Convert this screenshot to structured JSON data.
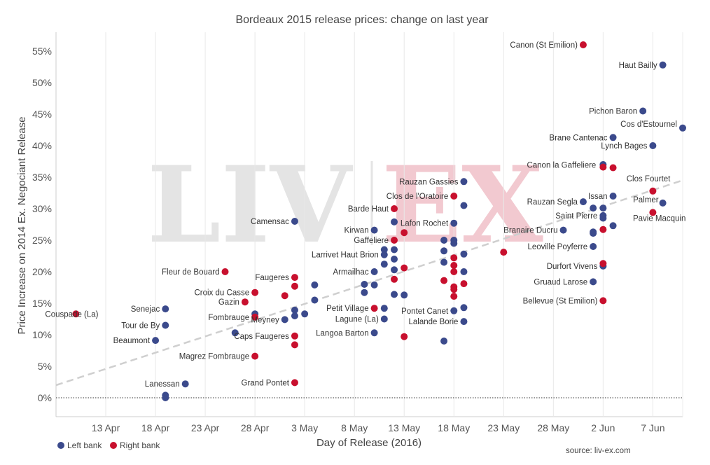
{
  "chart_data": {
    "type": "scatter",
    "title": "Bordeaux 2015 release prices: change on last year",
    "xlabel": "Day of Release (2016)",
    "ylabel": "Price Increase on 2014 Ex. Negociant Release",
    "x_range": [
      "2016-04-08",
      "2016-06-10"
    ],
    "x_ticks": [
      {
        "date": "2016-04-13",
        "label": "13 Apr"
      },
      {
        "date": "2016-04-18",
        "label": "18 Apr"
      },
      {
        "date": "2016-04-23",
        "label": "23 Apr"
      },
      {
        "date": "2016-04-28",
        "label": "28 Apr"
      },
      {
        "date": "2016-05-03",
        "label": "3 May"
      },
      {
        "date": "2016-05-08",
        "label": "8 May"
      },
      {
        "date": "2016-05-13",
        "label": "13 May"
      },
      {
        "date": "2016-05-18",
        "label": "18 May"
      },
      {
        "date": "2016-05-23",
        "label": "23 May"
      },
      {
        "date": "2016-05-28",
        "label": "28 May"
      },
      {
        "date": "2016-06-02",
        "label": "2 Jun"
      },
      {
        "date": "2016-06-07",
        "label": "7 Jun"
      }
    ],
    "y_range": [
      -3,
      58
    ],
    "y_ticks": [
      0,
      5,
      10,
      15,
      20,
      25,
      30,
      35,
      40,
      45,
      50,
      55
    ],
    "y_tick_labels": [
      "0%",
      "5%",
      "10%",
      "15%",
      "20%",
      "25%",
      "30%",
      "35%",
      "40%",
      "45%",
      "50%",
      "55%"
    ],
    "zero_line": true,
    "grid": "vertical",
    "trend_line": {
      "start": [
        "2016-04-08",
        2.0
      ],
      "end": [
        "2016-06-10",
        34.5
      ]
    },
    "legend_position": "bottom-left",
    "legend": [
      {
        "key": "left",
        "label": "Left bank",
        "color": "#3b4a8c"
      },
      {
        "key": "right",
        "label": "Right bank",
        "color": "#c8102e"
      }
    ],
    "source": "source: liv-ex.com",
    "watermark": "LIV-EX",
    "series": [
      {
        "key": "left",
        "name": "Left bank",
        "color": "#3b4a8c",
        "points": [
          {
            "x": "2016-06-08",
            "y": 52.8,
            "label": "Haut Bailly"
          },
          {
            "x": "2016-06-06",
            "y": 45.5,
            "label": "Pichon Baron"
          },
          {
            "x": "2016-06-10",
            "y": 42.8,
            "label": "Cos d'Estournel"
          },
          {
            "x": "2016-06-03",
            "y": 41.3,
            "label": "Brane Cantenac"
          },
          {
            "x": "2016-06-07",
            "y": 40.0,
            "label": "Lynch Bages"
          },
          {
            "x": "2016-06-02",
            "y": 37.0,
            "label": ""
          },
          {
            "x": "2016-05-19",
            "y": 34.3,
            "label": "Rauzan Gassies"
          },
          {
            "x": "2016-06-03",
            "y": 32.0,
            "label": "Issan"
          },
          {
            "x": "2016-05-31",
            "y": 31.1,
            "label": "Rauzan Segla"
          },
          {
            "x": "2016-06-08",
            "y": 30.9,
            "label": "Palmer"
          },
          {
            "x": "2016-05-19",
            "y": 30.5,
            "label": ""
          },
          {
            "x": "2016-06-01",
            "y": 30.1,
            "label": ""
          },
          {
            "x": "2016-06-02",
            "y": 30.1,
            "label": ""
          },
          {
            "x": "2016-06-02",
            "y": 28.9,
            "label": "Saint Pierre"
          },
          {
            "x": "2016-06-02",
            "y": 28.5,
            "label": ""
          },
          {
            "x": "2016-05-02",
            "y": 28.0,
            "label": "Camensac"
          },
          {
            "x": "2016-05-12",
            "y": 27.9,
            "label": ""
          },
          {
            "x": "2016-05-18",
            "y": 27.7,
            "label": "Lafon Rochet"
          },
          {
            "x": "2016-06-03",
            "y": 27.3,
            "label": ""
          },
          {
            "x": "2016-05-10",
            "y": 26.6,
            "label": "Kirwan"
          },
          {
            "x": "2016-05-29",
            "y": 26.6,
            "label": "Branaire Ducru"
          },
          {
            "x": "2016-06-01",
            "y": 26.3,
            "label": ""
          },
          {
            "x": "2016-06-01",
            "y": 26.1,
            "label": ""
          },
          {
            "x": "2016-05-17",
            "y": 25.0,
            "label": ""
          },
          {
            "x": "2016-05-18",
            "y": 25.0,
            "label": ""
          },
          {
            "x": "2016-05-18",
            "y": 24.5,
            "label": ""
          },
          {
            "x": "2016-06-01",
            "y": 24.0,
            "label": "Leoville Poyferre"
          },
          {
            "x": "2016-05-11",
            "y": 23.5,
            "label": ""
          },
          {
            "x": "2016-05-12",
            "y": 23.5,
            "label": ""
          },
          {
            "x": "2016-05-17",
            "y": 23.3,
            "label": ""
          },
          {
            "x": "2016-05-11",
            "y": 22.7,
            "label": "Larrivet Haut Brion"
          },
          {
            "x": "2016-05-19",
            "y": 22.8,
            "label": ""
          },
          {
            "x": "2016-05-12",
            "y": 22.0,
            "label": ""
          },
          {
            "x": "2016-05-17",
            "y": 21.5,
            "label": ""
          },
          {
            "x": "2016-05-11",
            "y": 21.2,
            "label": ""
          },
          {
            "x": "2016-06-02",
            "y": 20.9,
            "label": "Durfort Vivens"
          },
          {
            "x": "2016-05-10",
            "y": 20.0,
            "label": "Armailhac"
          },
          {
            "x": "2016-05-12",
            "y": 20.3,
            "label": ""
          },
          {
            "x": "2016-05-19",
            "y": 20.0,
            "label": ""
          },
          {
            "x": "2016-05-09",
            "y": 18.0,
            "label": ""
          },
          {
            "x": "2016-05-10",
            "y": 17.9,
            "label": ""
          },
          {
            "x": "2016-05-04",
            "y": 17.9,
            "label": ""
          },
          {
            "x": "2016-06-01",
            "y": 18.4,
            "label": "Gruaud Larose"
          },
          {
            "x": "2016-05-09",
            "y": 16.7,
            "label": ""
          },
          {
            "x": "2016-05-12",
            "y": 16.4,
            "label": ""
          },
          {
            "x": "2016-05-13",
            "y": 16.3,
            "label": ""
          },
          {
            "x": "2016-05-04",
            "y": 15.5,
            "label": ""
          },
          {
            "x": "2016-05-11",
            "y": 14.2,
            "label": ""
          },
          {
            "x": "2016-05-19",
            "y": 14.3,
            "label": ""
          },
          {
            "x": "2016-04-19",
            "y": 14.1,
            "label": "Senejac"
          },
          {
            "x": "2016-05-18",
            "y": 13.8,
            "label": "Pontet Canet"
          },
          {
            "x": "2016-05-02",
            "y": 13.9,
            "label": ""
          },
          {
            "x": "2016-05-03",
            "y": 13.3,
            "label": ""
          },
          {
            "x": "2016-04-28",
            "y": 13.3,
            "label": ""
          },
          {
            "x": "2016-05-02",
            "y": 13.0,
            "label": ""
          },
          {
            "x": "2016-05-01",
            "y": 12.4,
            "label": "Meyney"
          },
          {
            "x": "2016-05-11",
            "y": 12.5,
            "label": "Lagune (La)"
          },
          {
            "x": "2016-05-19",
            "y": 12.1,
            "label": "Lalande Borie"
          },
          {
            "x": "2016-04-19",
            "y": 11.5,
            "label": "Tour de By"
          },
          {
            "x": "2016-04-26",
            "y": 10.3,
            "label": ""
          },
          {
            "x": "2016-05-10",
            "y": 10.3,
            "label": "Langoa Barton"
          },
          {
            "x": "2016-04-18",
            "y": 9.1,
            "label": "Beaumont"
          },
          {
            "x": "2016-05-17",
            "y": 9.0,
            "label": ""
          },
          {
            "x": "2016-04-21",
            "y": 2.2,
            "label": "Lanessan"
          },
          {
            "x": "2016-04-19",
            "y": 0.4,
            "label": ""
          },
          {
            "x": "2016-04-19",
            "y": 0.0,
            "label": ""
          }
        ]
      },
      {
        "key": "right",
        "name": "Right bank",
        "color": "#c8102e",
        "points": [
          {
            "x": "2016-05-31",
            "y": 56.0,
            "label": "Canon (St Emilion)"
          },
          {
            "x": "2016-06-02",
            "y": 36.6,
            "label": "Canon la Gaffeliere"
          },
          {
            "x": "2016-06-03",
            "y": 36.5,
            "label": ""
          },
          {
            "x": "2016-06-07",
            "y": 32.8,
            "label": "Clos Fourtet"
          },
          {
            "x": "2016-05-18",
            "y": 32.0,
            "label": "Clos de l'Oratoire"
          },
          {
            "x": "2016-05-12",
            "y": 30.0,
            "label": "Barde Haut"
          },
          {
            "x": "2016-06-07",
            "y": 29.4,
            "label": "Pavie Macquin"
          },
          {
            "x": "2016-06-02",
            "y": 26.7,
            "label": ""
          },
          {
            "x": "2016-05-13",
            "y": 26.2,
            "label": ""
          },
          {
            "x": "2016-05-12",
            "y": 25.0,
            "label": "Gaffeliere"
          },
          {
            "x": "2016-05-23",
            "y": 23.1,
            "label": ""
          },
          {
            "x": "2016-05-18",
            "y": 22.2,
            "label": ""
          },
          {
            "x": "2016-06-02",
            "y": 21.3,
            "label": ""
          },
          {
            "x": "2016-05-18",
            "y": 21.0,
            "label": ""
          },
          {
            "x": "2016-05-13",
            "y": 20.6,
            "label": ""
          },
          {
            "x": "2016-04-25",
            "y": 20.0,
            "label": "Fleur de Bouard"
          },
          {
            "x": "2016-05-18",
            "y": 20.0,
            "label": ""
          },
          {
            "x": "2016-05-02",
            "y": 19.1,
            "label": "Faugeres"
          },
          {
            "x": "2016-05-12",
            "y": 18.8,
            "label": ""
          },
          {
            "x": "2016-05-17",
            "y": 18.6,
            "label": ""
          },
          {
            "x": "2016-05-19",
            "y": 18.1,
            "label": ""
          },
          {
            "x": "2016-05-02",
            "y": 17.7,
            "label": ""
          },
          {
            "x": "2016-05-18",
            "y": 17.6,
            "label": ""
          },
          {
            "x": "2016-05-18",
            "y": 17.2,
            "label": ""
          },
          {
            "x": "2016-04-28",
            "y": 16.7,
            "label": "Croix du Casse"
          },
          {
            "x": "2016-05-01",
            "y": 16.2,
            "label": ""
          },
          {
            "x": "2016-05-18",
            "y": 16.1,
            "label": ""
          },
          {
            "x": "2016-06-02",
            "y": 15.4,
            "label": "Bellevue (St Emilion)"
          },
          {
            "x": "2016-04-27",
            "y": 15.2,
            "label": "Gazin"
          },
          {
            "x": "2016-05-10",
            "y": 14.2,
            "label": "Petit Village"
          },
          {
            "x": "2016-04-10",
            "y": 13.3,
            "label": "Couspade (La)"
          },
          {
            "x": "2016-04-28",
            "y": 12.8,
            "label": "Fombrauge"
          },
          {
            "x": "2016-05-02",
            "y": 9.8,
            "label": "Caps Faugeres"
          },
          {
            "x": "2016-05-13",
            "y": 9.7,
            "label": ""
          },
          {
            "x": "2016-05-02",
            "y": 8.4,
            "label": ""
          },
          {
            "x": "2016-04-28",
            "y": 6.6,
            "label": "Magrez Fombrauge"
          },
          {
            "x": "2016-05-02",
            "y": 2.4,
            "label": "Grand Pontet"
          }
        ]
      }
    ]
  }
}
